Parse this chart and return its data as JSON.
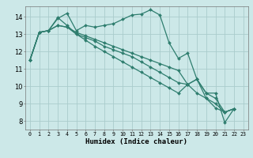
{
  "title": "",
  "xlabel": "Humidex (Indice chaleur)",
  "bg_color": "#cce8e8",
  "grid_color": "#aacccc",
  "line_color": "#2e7d6e",
  "xlim_min": -0.5,
  "xlim_max": 23.5,
  "ylim_min": 7.5,
  "ylim_max": 14.6,
  "xticks": [
    0,
    1,
    2,
    3,
    4,
    5,
    6,
    7,
    8,
    9,
    10,
    11,
    12,
    13,
    14,
    15,
    16,
    17,
    18,
    19,
    20,
    21,
    22,
    23
  ],
  "yticks": [
    8,
    9,
    10,
    11,
    12,
    13,
    14
  ],
  "series": [
    [
      11.5,
      13.1,
      13.2,
      13.9,
      14.2,
      13.2,
      13.5,
      13.4,
      13.5,
      13.6,
      13.85,
      14.1,
      14.15,
      14.4,
      14.1,
      12.5,
      11.6,
      11.9,
      10.4,
      9.6,
      9.6,
      7.9,
      8.7
    ],
    [
      11.5,
      13.1,
      13.2,
      13.95,
      13.5,
      13.0,
      12.8,
      12.6,
      12.3,
      12.1,
      11.9,
      11.7,
      11.4,
      11.1,
      10.8,
      10.5,
      10.2,
      10.1,
      9.6,
      9.3,
      9.0,
      8.5,
      8.7
    ],
    [
      11.5,
      13.1,
      13.2,
      13.5,
      13.4,
      13.0,
      12.65,
      12.3,
      12.0,
      11.7,
      11.4,
      11.1,
      10.8,
      10.5,
      10.2,
      9.9,
      9.6,
      10.1,
      10.4,
      9.3,
      8.75,
      8.5,
      8.7
    ],
    [
      11.5,
      13.1,
      13.2,
      13.5,
      13.4,
      13.1,
      12.9,
      12.7,
      12.5,
      12.3,
      12.1,
      11.9,
      11.7,
      11.5,
      11.3,
      11.1,
      10.9,
      10.1,
      10.4,
      9.6,
      9.3,
      8.5,
      8.7
    ]
  ],
  "marker_size": 2.0,
  "line_width": 0.9,
  "xlabel_fontsize": 6.5,
  "xtick_fontsize": 4.8,
  "ytick_fontsize": 6.0
}
